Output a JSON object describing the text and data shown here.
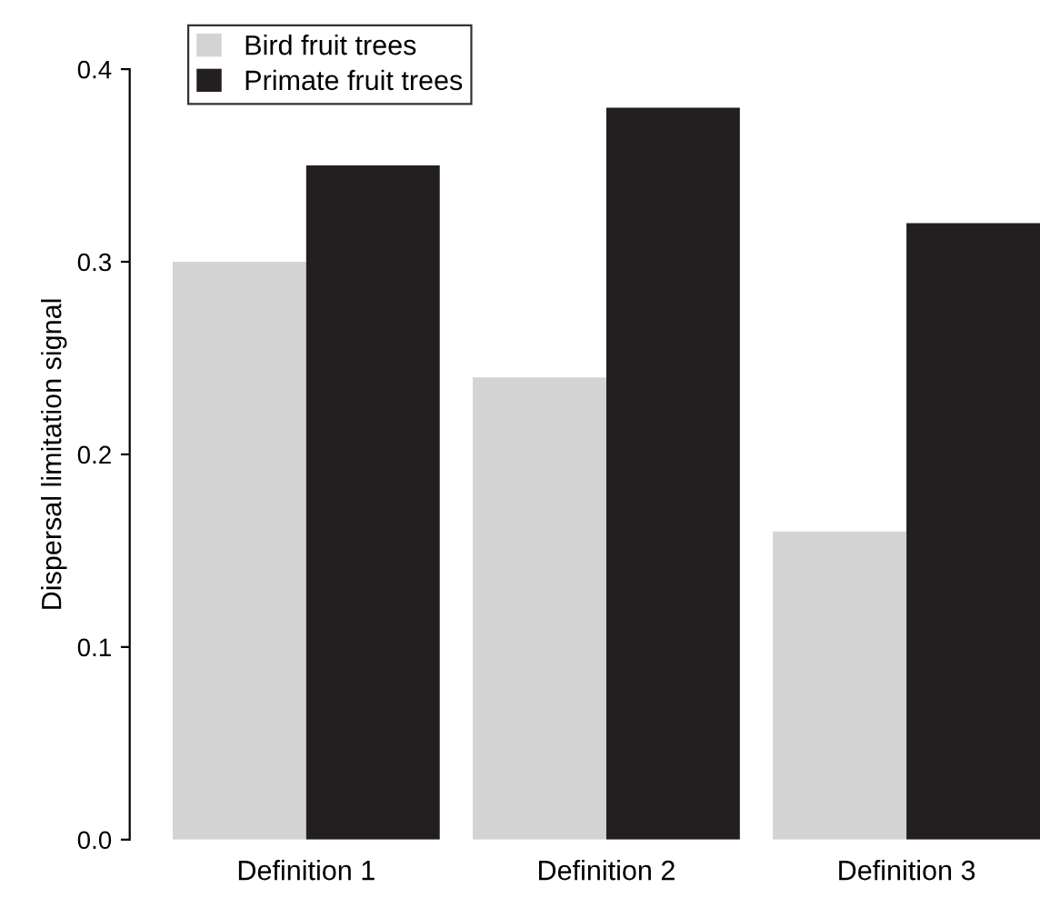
{
  "chart_data": {
    "type": "bar",
    "ylabel": "Dispersal limitation signal",
    "categories": [
      "Definition 1",
      "Definition 2",
      "Definition 3"
    ],
    "series": [
      {
        "name": "Bird fruit trees",
        "color": "#d3d3d3",
        "values": [
          0.3,
          0.24,
          0.16
        ]
      },
      {
        "name": "Primate fruit trees",
        "color": "#231f20",
        "values": [
          0.35,
          0.38,
          0.32
        ]
      }
    ],
    "ylim": [
      0,
      0.4
    ],
    "yticks": [
      {
        "value": 0,
        "label": "0.0"
      },
      0.1,
      0.2,
      0.3,
      0.4
    ],
    "grid": false,
    "legend": "top left"
  }
}
